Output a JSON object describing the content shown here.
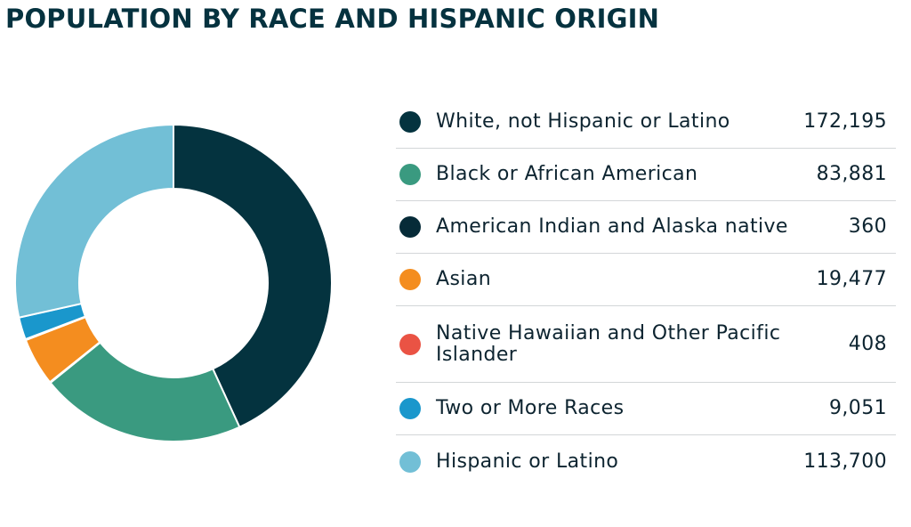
{
  "chart_data": {
    "type": "pie",
    "title": "POPULATION BY RACE AND HISPANIC ORIGIN",
    "legend_position": "right",
    "categories": [
      "White, not Hispanic or Latino",
      "Black or African American",
      "American Indian and Alaska native",
      "Asian",
      "Native Hawaiian and Other Pacific Islander",
      "Two or More Races",
      "Hispanic or Latino"
    ],
    "values": [
      172195,
      83881,
      360,
      19477,
      408,
      9051,
      113700
    ],
    "value_labels": [
      "172,195",
      "83,881",
      "360",
      "19,477",
      "408",
      "9,051",
      "113,700"
    ],
    "colors": [
      "#04333f",
      "#3a9a80",
      "#062b38",
      "#f48d1f",
      "#ea5344",
      "#1a97cc",
      "#72bfd6"
    ]
  }
}
